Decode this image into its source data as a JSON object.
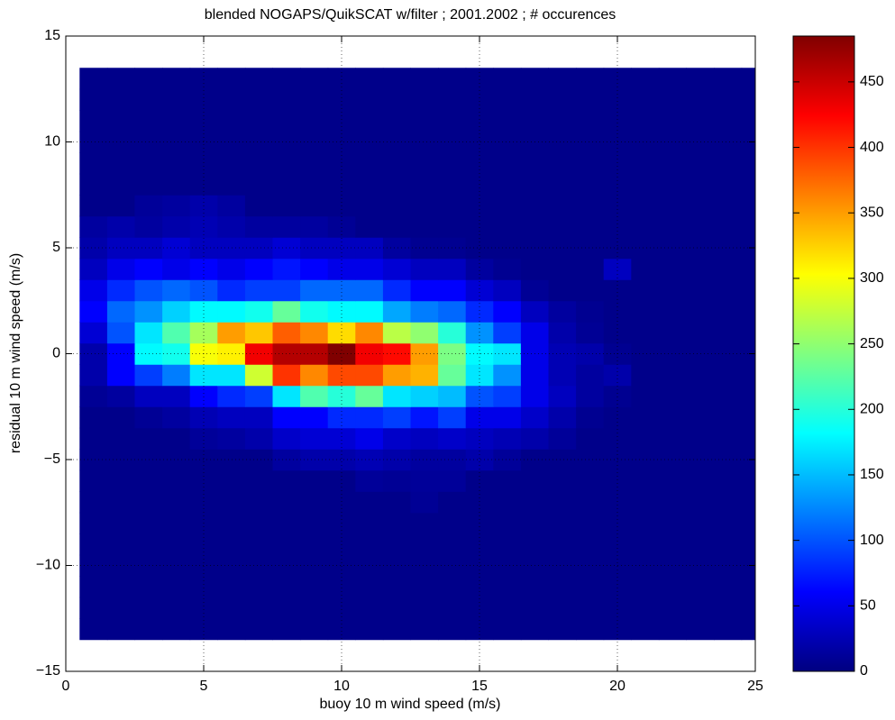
{
  "chart_data": {
    "type": "heatmap",
    "title": "blended NOGAPS/QuikSCAT w/filter ; 2001.2002 ; # occurences",
    "x_label": "buoy 10 m wind speed (m/s)",
    "y_label": "residual 10 m wind speed (m/s)",
    "x": [
      1,
      2,
      3,
      4,
      5,
      6,
      7,
      8,
      9,
      10,
      11,
      12,
      13,
      14,
      15,
      16,
      17,
      18,
      19,
      20,
      21,
      22,
      23,
      24,
      25
    ],
    "y": [
      -13,
      -12,
      -11,
      -10,
      -9,
      -8,
      -7,
      -6,
      -5,
      -4,
      -3,
      -2,
      -1,
      0,
      1,
      2,
      3,
      4,
      5,
      6,
      7,
      8,
      9,
      10,
      11,
      12,
      13
    ],
    "values": [
      [
        5,
        5,
        5,
        5,
        5,
        5,
        5,
        5,
        5,
        5,
        5,
        5,
        5,
        5,
        5,
        5,
        5,
        5,
        5,
        5,
        5,
        5,
        5,
        5,
        5
      ],
      [
        5,
        5,
        5,
        5,
        5,
        5,
        5,
        5,
        5,
        5,
        5,
        5,
        5,
        5,
        5,
        5,
        5,
        5,
        5,
        5,
        5,
        5,
        5,
        5,
        5
      ],
      [
        5,
        5,
        5,
        5,
        5,
        5,
        5,
        5,
        5,
        5,
        5,
        5,
        5,
        5,
        5,
        5,
        5,
        5,
        5,
        5,
        5,
        5,
        5,
        5,
        5
      ],
      [
        5,
        5,
        5,
        5,
        5,
        5,
        5,
        5,
        5,
        5,
        5,
        5,
        5,
        5,
        5,
        5,
        5,
        5,
        5,
        5,
        5,
        5,
        5,
        5,
        5
      ],
      [
        5,
        5,
        5,
        5,
        5,
        5,
        5,
        5,
        5,
        5,
        5,
        5,
        5,
        5,
        5,
        5,
        5,
        5,
        5,
        5,
        5,
        5,
        5,
        5,
        5
      ],
      [
        5,
        5,
        5,
        5,
        5,
        5,
        5,
        5,
        5,
        5,
        5,
        5,
        5,
        5,
        5,
        5,
        5,
        5,
        5,
        5,
        5,
        5,
        5,
        5,
        5
      ],
      [
        5,
        5,
        5,
        5,
        5,
        5,
        5,
        5,
        5,
        5,
        5,
        5,
        10,
        5,
        5,
        5,
        5,
        5,
        5,
        5,
        5,
        5,
        5,
        5,
        5
      ],
      [
        5,
        5,
        5,
        5,
        5,
        5,
        5,
        5,
        5,
        5,
        12,
        10,
        12,
        12,
        5,
        5,
        5,
        5,
        5,
        5,
        5,
        5,
        5,
        5,
        5
      ],
      [
        5,
        5,
        5,
        5,
        5,
        5,
        5,
        15,
        20,
        20,
        25,
        20,
        15,
        15,
        20,
        12,
        5,
        5,
        5,
        5,
        5,
        5,
        5,
        5,
        5
      ],
      [
        5,
        5,
        5,
        5,
        12,
        15,
        20,
        35,
        40,
        40,
        50,
        35,
        30,
        35,
        30,
        25,
        20,
        12,
        5,
        5,
        5,
        5,
        5,
        5,
        5
      ],
      [
        5,
        5,
        10,
        15,
        25,
        30,
        30,
        60,
        60,
        80,
        80,
        90,
        70,
        90,
        50,
        50,
        35,
        20,
        8,
        5,
        5,
        5,
        5,
        5,
        5
      ],
      [
        10,
        15,
        30,
        30,
        60,
        80,
        90,
        170,
        220,
        200,
        230,
        170,
        160,
        150,
        100,
        90,
        50,
        30,
        15,
        8,
        5,
        5,
        5,
        5,
        5
      ],
      [
        20,
        60,
        90,
        120,
        170,
        170,
        280,
        400,
        360,
        390,
        390,
        350,
        340,
        230,
        170,
        130,
        50,
        25,
        15,
        20,
        5,
        5,
        5,
        5,
        5
      ],
      [
        20,
        60,
        180,
        190,
        300,
        310,
        430,
        460,
        460,
        485,
        430,
        420,
        350,
        240,
        180,
        170,
        50,
        25,
        20,
        8,
        5,
        5,
        5,
        5,
        5
      ],
      [
        40,
        100,
        170,
        220,
        260,
        350,
        330,
        380,
        360,
        320,
        360,
        270,
        250,
        200,
        130,
        90,
        50,
        20,
        10,
        5,
        5,
        5,
        5,
        5,
        5
      ],
      [
        60,
        110,
        130,
        160,
        180,
        180,
        190,
        230,
        190,
        180,
        180,
        140,
        120,
        110,
        80,
        60,
        30,
        15,
        8,
        5,
        5,
        5,
        5,
        5,
        5
      ],
      [
        50,
        80,
        100,
        110,
        100,
        80,
        90,
        90,
        110,
        110,
        110,
        80,
        60,
        60,
        40,
        30,
        10,
        5,
        5,
        5,
        5,
        5,
        5,
        5,
        5
      ],
      [
        30,
        50,
        60,
        50,
        60,
        50,
        60,
        70,
        60,
        50,
        50,
        40,
        30,
        30,
        15,
        8,
        5,
        5,
        5,
        30,
        5,
        5,
        5,
        5,
        5
      ],
      [
        20,
        30,
        30,
        40,
        30,
        30,
        30,
        40,
        30,
        30,
        30,
        15,
        8,
        8,
        5,
        5,
        5,
        5,
        5,
        5,
        5,
        5,
        5,
        5,
        5
      ],
      [
        15,
        20,
        15,
        20,
        25,
        20,
        15,
        15,
        15,
        10,
        5,
        5,
        5,
        5,
        5,
        5,
        5,
        5,
        5,
        5,
        5,
        5,
        5,
        5,
        5
      ],
      [
        5,
        5,
        12,
        15,
        20,
        15,
        5,
        5,
        5,
        5,
        5,
        5,
        5,
        5,
        5,
        5,
        5,
        5,
        5,
        5,
        5,
        5,
        5,
        5,
        5
      ],
      [
        5,
        5,
        5,
        5,
        5,
        5,
        5,
        5,
        5,
        5,
        5,
        5,
        5,
        5,
        5,
        5,
        5,
        5,
        5,
        5,
        5,
        5,
        5,
        5,
        5
      ],
      [
        5,
        5,
        5,
        5,
        5,
        5,
        5,
        5,
        5,
        5,
        5,
        5,
        5,
        5,
        5,
        5,
        5,
        5,
        5,
        5,
        5,
        5,
        5,
        5,
        5
      ],
      [
        5,
        5,
        5,
        5,
        5,
        5,
        5,
        5,
        5,
        5,
        5,
        5,
        5,
        5,
        5,
        5,
        5,
        5,
        5,
        5,
        5,
        5,
        5,
        5,
        5
      ],
      [
        5,
        5,
        5,
        5,
        5,
        5,
        5,
        5,
        5,
        5,
        5,
        5,
        5,
        5,
        5,
        5,
        5,
        5,
        5,
        5,
        5,
        5,
        5,
        5,
        5
      ],
      [
        5,
        5,
        5,
        5,
        5,
        5,
        5,
        5,
        5,
        5,
        5,
        5,
        5,
        5,
        5,
        5,
        5,
        5,
        5,
        5,
        5,
        5,
        5,
        5,
        5
      ],
      [
        5,
        5,
        5,
        5,
        5,
        5,
        5,
        5,
        5,
        5,
        5,
        5,
        5,
        5,
        5,
        5,
        5,
        5,
        5,
        5,
        5,
        5,
        5,
        5,
        5
      ]
    ],
    "xlim": [
      0,
      25
    ],
    "xticks": [
      0,
      5,
      10,
      15,
      20,
      25
    ],
    "ylim": [
      -15,
      15
    ],
    "yticks": [
      {
        "value": -15,
        "label": "−15"
      },
      {
        "value": -10,
        "label": "−10"
      },
      {
        "value": -5,
        "label": "−5"
      },
      0,
      5,
      10,
      15
    ],
    "clim": [
      0,
      485
    ],
    "cticks": [
      0,
      50,
      100,
      150,
      200,
      250,
      300,
      350,
      400,
      450
    ],
    "colormap": [
      "#000080",
      "#0000ff",
      "#0080ff",
      "#00ffff",
      "#80ff80",
      "#ffff00",
      "#ff8000",
      "#ff0000",
      "#800000"
    ],
    "grid": true
  }
}
